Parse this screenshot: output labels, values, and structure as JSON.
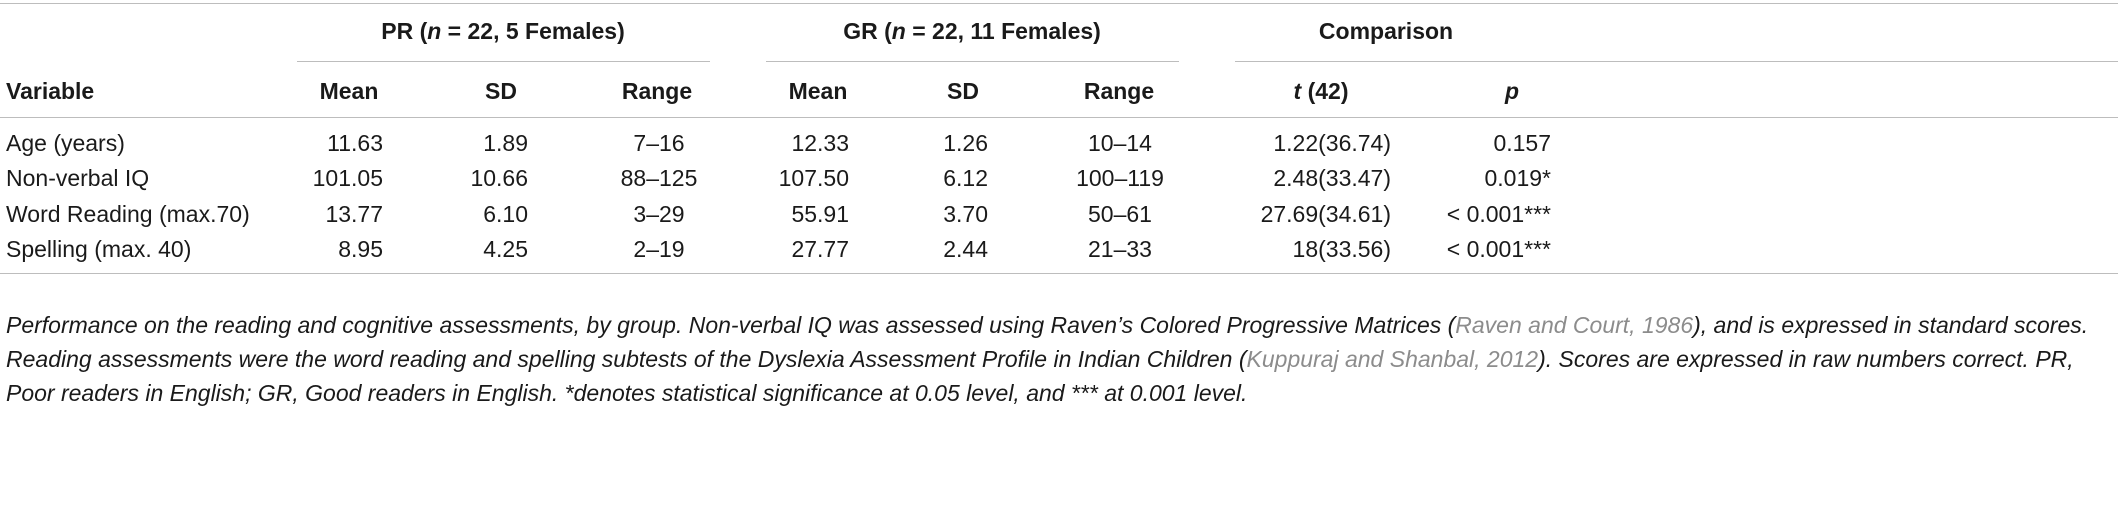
{
  "table": {
    "group_headers": {
      "pr": {
        "name": "PR (",
        "n": "n",
        "rest": " = 22, 5 Females)"
      },
      "gr": {
        "name": "GR (",
        "n": "n",
        "rest": " = 22, 11 Females)"
      },
      "comparison": "Comparison"
    },
    "columns": {
      "variable": "Variable",
      "pr_mean": "Mean",
      "pr_sd": "SD",
      "pr_range": "Range",
      "gr_mean": "Mean",
      "gr_sd": "SD",
      "gr_range": "Range",
      "t_symbol": "t",
      "t_df": " (42)",
      "p": "p"
    },
    "rows": [
      {
        "variable": "Age (years)",
        "pr_mean": "11.63",
        "pr_sd": "1.89",
        "pr_range": "7–16",
        "gr_mean": "12.33",
        "gr_sd": "1.26",
        "gr_range": "10–14",
        "t": "1.22(36.74)",
        "p": "0.157"
      },
      {
        "variable": "Non-verbal IQ",
        "pr_mean": "101.05",
        "pr_sd": "10.66",
        "pr_range": "88–125",
        "gr_mean": "107.50",
        "gr_sd": "6.12",
        "gr_range": "100–119",
        "t": "2.48(33.47)",
        "p": "0.019*"
      },
      {
        "variable": "Word Reading (max.70)",
        "pr_mean": "13.77",
        "pr_sd": "6.10",
        "pr_range": "3–29",
        "gr_mean": "55.91",
        "gr_sd": "3.70",
        "gr_range": "50–61",
        "t": "27.69(34.61)",
        "p": "< 0.001***"
      },
      {
        "variable": "Spelling (max. 40)",
        "pr_mean": "8.95",
        "pr_sd": "4.25",
        "pr_range": "2–19",
        "gr_mean": "27.77",
        "gr_sd": "2.44",
        "gr_range": "21–33",
        "t": "18(33.56)",
        "p": "< 0.001***"
      }
    ]
  },
  "caption": {
    "part1": "Performance on the reading and cognitive assessments, by group. Non-verbal IQ was assessed using Raven’s Colored Progressive Matrices (",
    "cite1": "Raven and Court, 1986",
    "part2": "), and is expressed in standard scores. Reading assessments were the word reading and spelling subtests of the Dyslexia Assessment Profile in Indian Children (",
    "cite2": "Kuppuraj and Shanbal, 2012",
    "part3": "). Scores are expressed in raw numbers correct. PR, Poor readers in English; GR, Good readers in English. *denotes statistical significance at 0.05 level, and *** at 0.001 level."
  }
}
